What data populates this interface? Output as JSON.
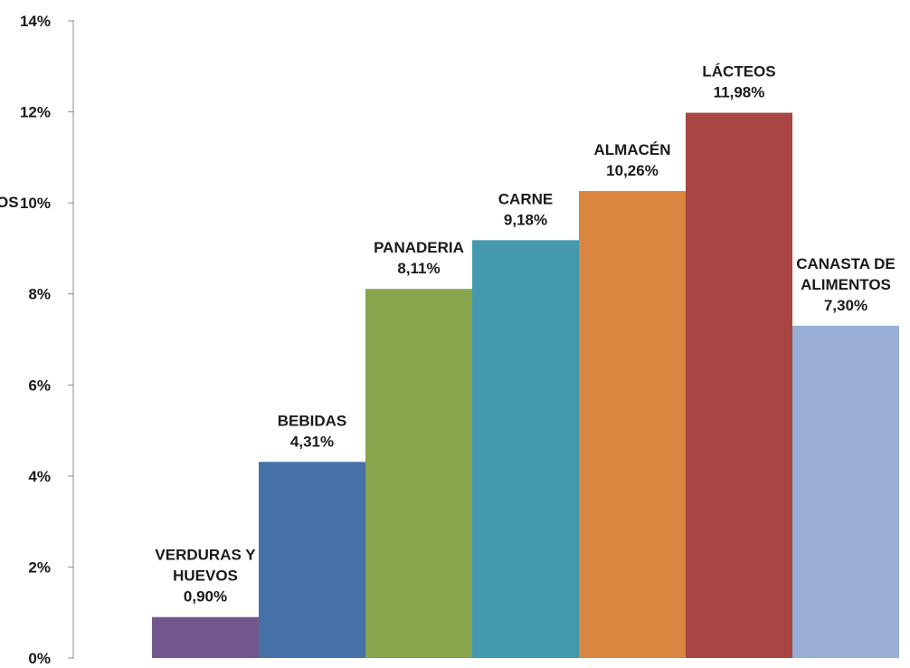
{
  "chart_data": {
    "type": "bar",
    "categories": [
      [
        "VERDURAS Y",
        "HUEVOS"
      ],
      [
        "BEBIDAS"
      ],
      [
        "PANADERIA"
      ],
      [
        "CARNE"
      ],
      [
        "ALMACÉN"
      ],
      [
        "LÁCTEOS"
      ],
      [
        "CANASTA DE",
        "ALIMENTOS"
      ]
    ],
    "values": [
      0.9,
      4.31,
      8.11,
      9.18,
      10.26,
      11.98,
      7.3
    ],
    "value_labels": [
      "0,90%",
      "4,31%",
      "8,11%",
      "9,18%",
      "10,26%",
      "11,98%",
      "7,30%"
    ],
    "colors": [
      "#72588f",
      "#4672a8",
      "#88a44d",
      "#4499af",
      "#da8540",
      "#a84643",
      "#98aed4"
    ],
    "yticks": [
      "0%",
      "2%",
      "4%",
      "6%",
      "8%",
      "10%",
      "12%",
      "14%"
    ],
    "ylim": [
      0,
      14
    ],
    "ylabel_fragment": "OS",
    "grid": false,
    "legend": "none"
  }
}
